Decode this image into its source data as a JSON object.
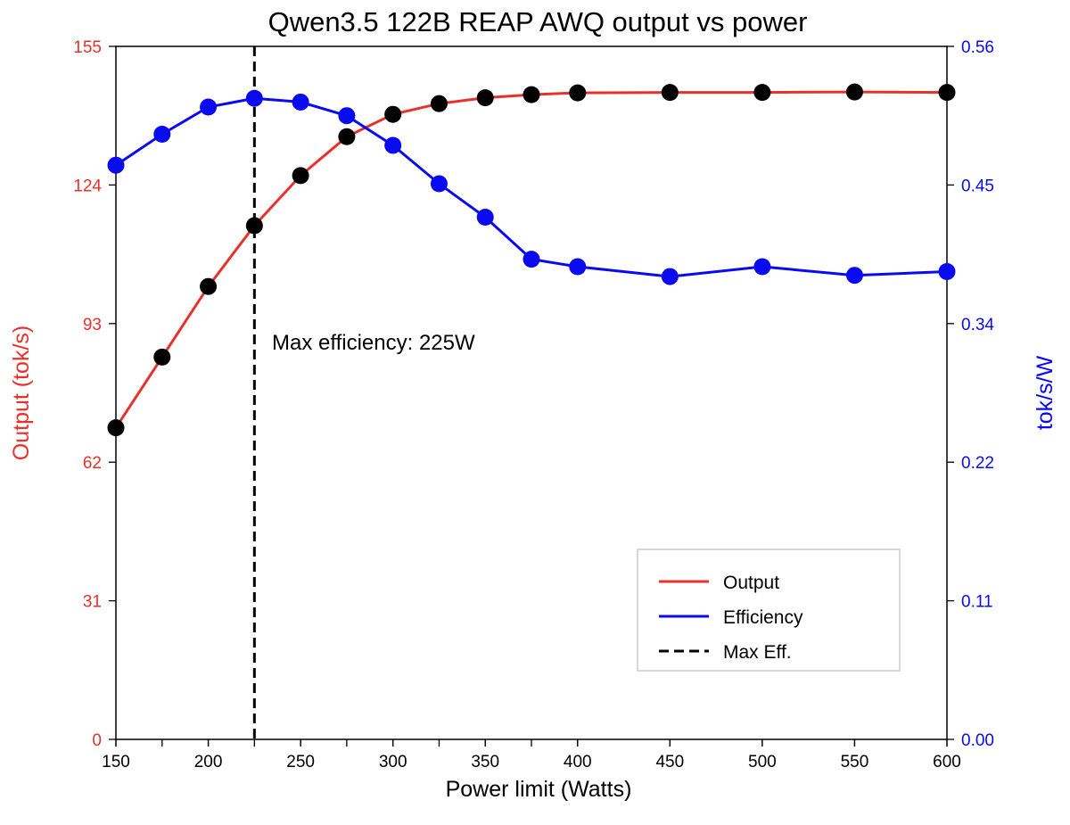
{
  "chart_data": {
    "type": "line",
    "title": "Qwen3.5 122B REAP AWQ output vs power",
    "xlabel": "Power limit (Watts)",
    "ylabel_left": "Output (tok/s)",
    "ylabel_right": "tok/s/W",
    "x_ticks": [
      "150",
      "200",
      "250",
      "300",
      "350",
      "400",
      "450",
      "500",
      "550",
      "600"
    ],
    "y_left_ticks": [
      "0",
      "31",
      "62",
      "93",
      "124",
      "155"
    ],
    "y_right_ticks": [
      "0.00",
      "0.11",
      "0.22",
      "0.34",
      "0.45",
      "0.56"
    ],
    "xlim": [
      150,
      600
    ],
    "ylim_left": [
      0,
      155
    ],
    "ylim_right": [
      0,
      0.56
    ],
    "x": [
      150,
      175,
      200,
      225,
      250,
      275,
      300,
      325,
      350,
      375,
      400,
      450,
      500,
      550,
      600
    ],
    "series": [
      {
        "name": "Output",
        "axis": "left",
        "color": "#e8312a",
        "marker_color": "#000000",
        "values": [
          69.7,
          85.5,
          101.3,
          114.9,
          126.1,
          134.8,
          139.8,
          142.2,
          143.5,
          144.2,
          144.6,
          144.7,
          144.7,
          144.8,
          144.7
        ]
      },
      {
        "name": "Efficiency",
        "axis": "right",
        "color": "#0a0af0",
        "marker_color": "#0a0af0",
        "values": [
          0.464,
          0.489,
          0.511,
          0.518,
          0.515,
          0.504,
          0.48,
          0.449,
          0.422,
          0.388,
          0.382,
          0.374,
          0.382,
          0.375,
          0.378
        ]
      }
    ],
    "vline": {
      "name": "Max Eff.",
      "x": 225,
      "color": "#000000"
    },
    "annotation": "Max efficiency: 225W",
    "legend": {
      "position": "lower-right",
      "items": [
        {
          "label": "Output",
          "color": "#e8312a",
          "style": "solid"
        },
        {
          "label": "Efficiency",
          "color": "#0a0af0",
          "style": "solid"
        },
        {
          "label": "Max Eff.",
          "color": "#000000",
          "style": "dashed"
        }
      ]
    },
    "grid": false,
    "colors": {
      "left_axis": "#e8312a",
      "right_axis": "#0a0af0"
    }
  }
}
